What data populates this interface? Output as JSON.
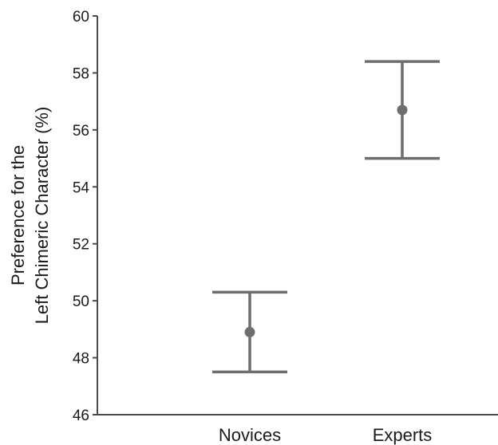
{
  "chart_data": {
    "type": "scatter",
    "categories": [
      "Novices",
      "Experts"
    ],
    "series": [
      {
        "values": [
          48.9,
          56.7
        ],
        "error_lower": [
          47.5,
          55.0
        ],
        "error_upper": [
          50.3,
          58.4
        ]
      }
    ],
    "ylabel_lines": [
      "Preference for the",
      "Left Chimeric Character (%)"
    ],
    "ylim": [
      46,
      60
    ],
    "yticks": [
      46,
      48,
      50,
      52,
      54,
      56,
      58,
      60
    ],
    "grid": false,
    "color": "#6e6e6e"
  }
}
